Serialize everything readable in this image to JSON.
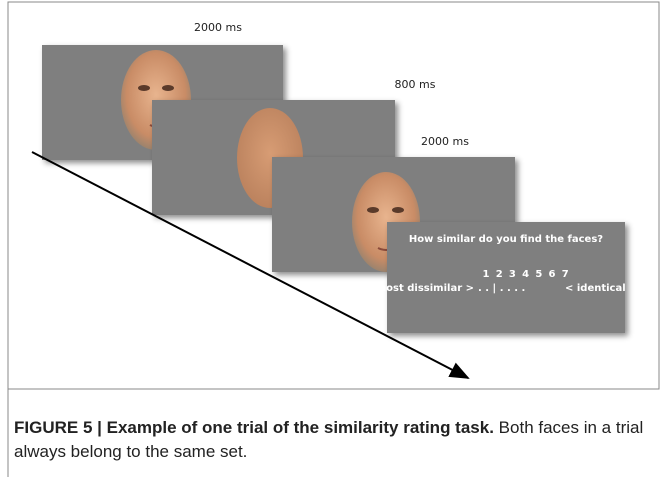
{
  "screens": [
    {
      "duration": "2000 ms"
    },
    {
      "duration": "800 ms"
    },
    {
      "duration": "2000 ms"
    }
  ],
  "rating": {
    "question": "How similar do you find the faces?",
    "scale": [
      1,
      2,
      3,
      4,
      5,
      6,
      7
    ],
    "left_label": "most dissimilar >",
    "right_label": "< identical"
  },
  "caption": {
    "title": "FIGURE 5 | Example of one trial of the similarity rating task.",
    "text": "Both faces in a trial always belong to the same set."
  }
}
